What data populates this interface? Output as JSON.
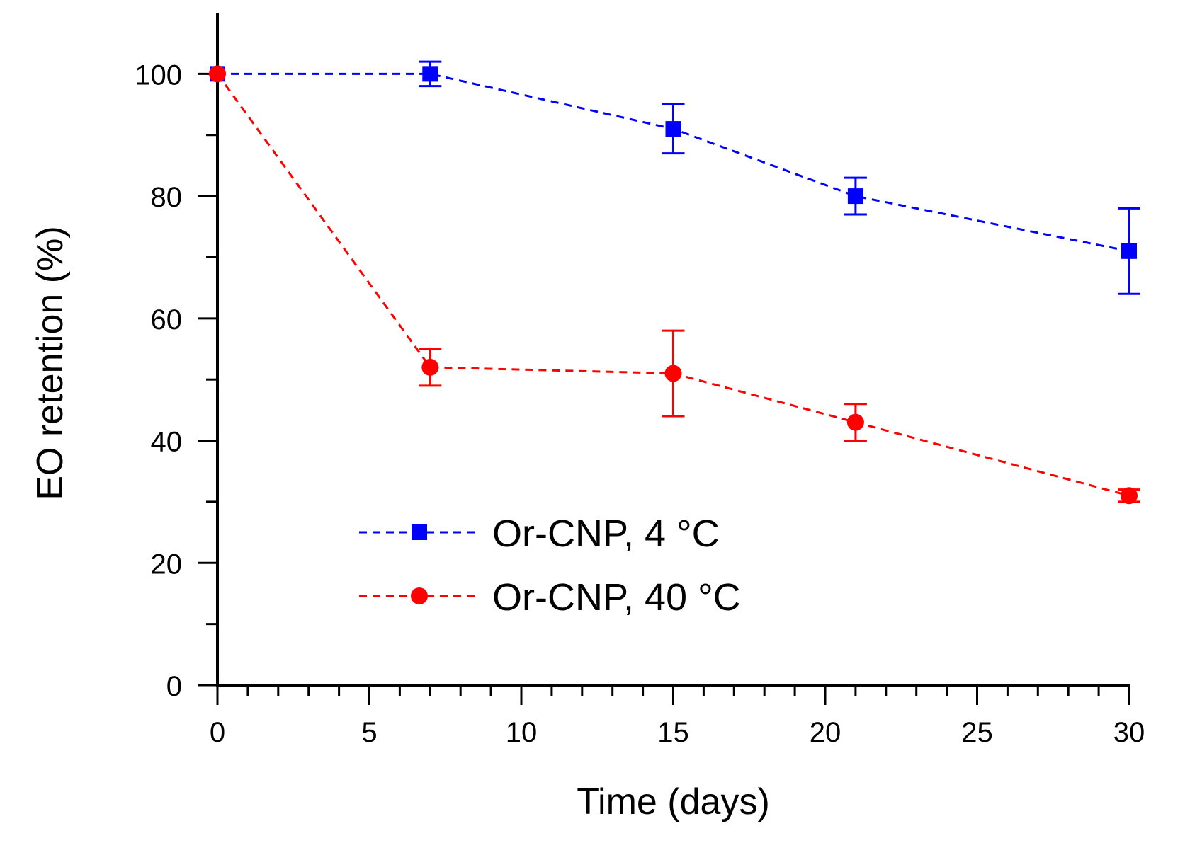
{
  "chart_data": {
    "type": "line",
    "title": "",
    "xlabel": "Time (days)",
    "ylabel": "EO retention (%)",
    "xlim": [
      0,
      30
    ],
    "ylim": [
      0,
      110
    ],
    "x_ticks": [
      0,
      5,
      10,
      15,
      20,
      25,
      30
    ],
    "x_tick_labels": [
      "0",
      "5",
      "10",
      "15",
      "20",
      "25",
      "30"
    ],
    "x_minor_step": 1,
    "y_ticks": [
      0,
      20,
      40,
      60,
      80,
      100
    ],
    "y_tick_labels": [
      "0",
      "20",
      "40",
      "60",
      "80",
      "100"
    ],
    "y_minor_step": 10,
    "grid": false,
    "legend_position": "center-left",
    "series": [
      {
        "name": "Or-CNP, 4 °C",
        "color": "#0000ff",
        "marker": "square",
        "line_style": "dashed",
        "x": [
          0,
          7,
          15,
          21,
          30
        ],
        "y": [
          100,
          100,
          91,
          80,
          71
        ],
        "error": [
          0,
          2,
          4,
          3,
          7
        ]
      },
      {
        "name": "Or-CNP, 40 °C",
        "color": "#ff0000",
        "marker": "circle",
        "line_style": "dashed",
        "x": [
          0,
          7,
          15,
          21,
          30
        ],
        "y": [
          100,
          52,
          51,
          43,
          31
        ],
        "error": [
          0,
          3,
          7,
          3,
          1
        ]
      }
    ]
  }
}
